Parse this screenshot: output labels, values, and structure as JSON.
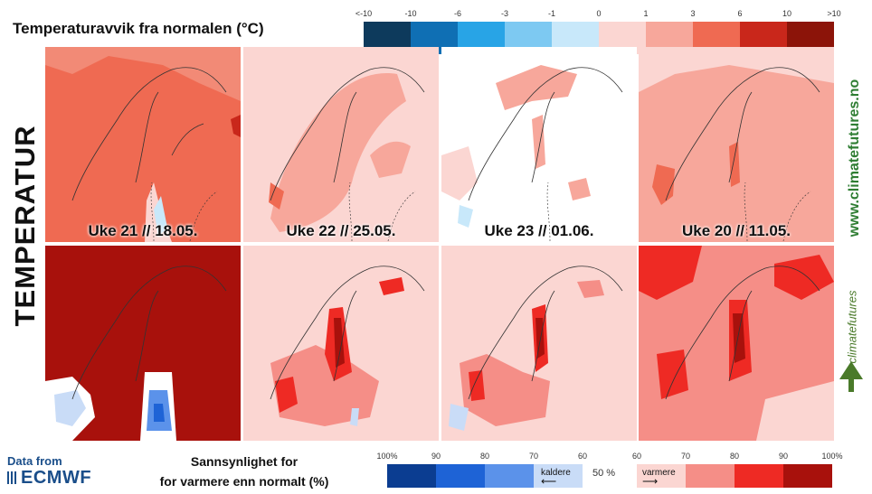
{
  "header": {
    "title": "Temperaturavvik fra normalen (°C)",
    "vertical_title": "TEMPERATUR"
  },
  "temp_legend": {
    "ticks": [
      "<-10",
      "-10",
      "-6",
      "-3",
      "-1",
      "0",
      "1",
      "3",
      "6",
      "10",
      ">10"
    ],
    "colors": [
      "#0d3a5c",
      "#0f6fb4",
      "#28a4e6",
      "#7dc9f2",
      "#c8e8fa",
      "#fbd6d2",
      "#f7a79b",
      "#ef6a52",
      "#c9271b",
      "#8c1409"
    ]
  },
  "week_labels": [
    "Uke 21 // 18.05.",
    "Uke 22 // 25.05.",
    "Uke 23 // 01.06.",
    "Uke 20 // 11.05."
  ],
  "prob_legend": {
    "title_line1": "Sannsynlighet for",
    "title_line2": "for varmere enn normalt (%)",
    "cold_ticks": [
      "100%",
      "90",
      "80",
      "70",
      "60"
    ],
    "warm_ticks": [
      "60",
      "70",
      "80",
      "90",
      "100%"
    ],
    "fifty_label": "50 %",
    "colder_label": "kaldere",
    "warmer_label": "varmere",
    "cold_colors": [
      "#0b3d91",
      "#1e63d6",
      "#5b92ea",
      "#c9dcf7"
    ],
    "warm_colors": [
      "#fbd6d2",
      "#f58e87",
      "#ee2a24",
      "#a8110c"
    ]
  },
  "branding": {
    "data_from": "Data from",
    "ecmwf": "ECMWF",
    "site": "www.climatefutures.no",
    "brand": "climatefutures"
  }
}
